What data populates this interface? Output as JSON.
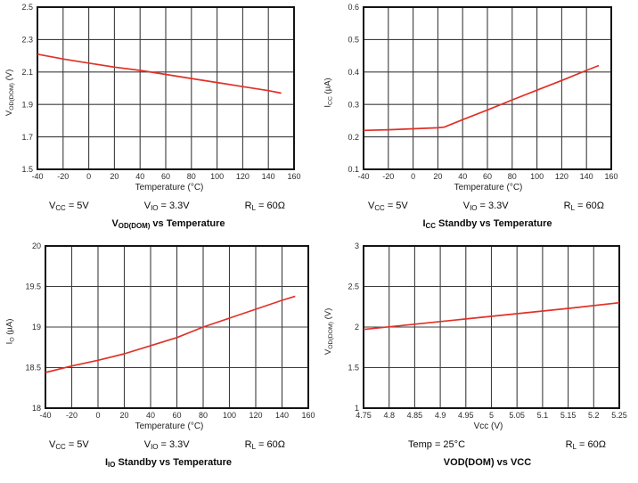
{
  "style": {
    "background": "#ffffff",
    "line_color": "#e03127",
    "grid_color": "#3d3d3d",
    "frame_color": "#141414",
    "tick_color": "#2b2b2b"
  },
  "chart_data": [
    {
      "id": "vod_dom_vs_temperature",
      "type": "line",
      "title": [
        {
          "t": "V"
        },
        {
          "t": "OD(DOM)",
          "sub": true
        },
        {
          "t": " vs Temperature"
        }
      ],
      "xlabel": "Temperature (°C)",
      "ylabel": [
        {
          "t": "V"
        },
        {
          "t": "OD(DOM)",
          "sub": true
        },
        {
          "t": " (V)"
        }
      ],
      "xlim": [
        -40,
        160
      ],
      "ylim": [
        1.5,
        2.5
      ],
      "xticks": [
        -40,
        -20,
        0,
        20,
        40,
        60,
        80,
        100,
        120,
        140,
        160
      ],
      "xtick_labels": [
        "-40",
        "-20",
        "0",
        "20",
        "40",
        "60",
        "80",
        "100",
        "120",
        "140",
        "160"
      ],
      "yticks": [
        1.5,
        1.7,
        1.9,
        2.1,
        2.3,
        2.5
      ],
      "ytick_labels": [
        "1.5",
        "1.7",
        "1.9",
        "2.1",
        "2.3",
        "2.5"
      ],
      "grid": true,
      "legend": "none",
      "series": [
        {
          "name": "VOD(DOM)",
          "points": [
            [
              -40,
              2.21
            ],
            [
              -20,
              2.18
            ],
            [
              0,
              2.155
            ],
            [
              20,
              2.13
            ],
            [
              40,
              2.11
            ],
            [
              60,
              2.085
            ],
            [
              80,
              2.06
            ],
            [
              100,
              2.035
            ],
            [
              120,
              2.01
            ],
            [
              140,
              1.985
            ],
            [
              150,
              1.97
            ]
          ]
        }
      ],
      "conditions": [
        [
          {
            "t": "V"
          },
          {
            "t": "CC",
            "sub": true
          },
          {
            "t": " = 5V"
          }
        ],
        [
          {
            "t": "V"
          },
          {
            "t": "IO",
            "sub": true
          },
          {
            "t": " = 3.3V"
          }
        ],
        [
          {
            "t": "R"
          },
          {
            "t": "L",
            "sub": true
          },
          {
            "t": " = 60Ω"
          }
        ]
      ]
    },
    {
      "id": "icc_standby_vs_temperature",
      "type": "line",
      "title": [
        {
          "t": "I"
        },
        {
          "t": "CC",
          "sub": true
        },
        {
          "t": " Standby vs Temperature"
        }
      ],
      "xlabel": "Temperature (°C)",
      "ylabel": [
        {
          "t": "I"
        },
        {
          "t": "CC",
          "sub": true
        },
        {
          "t": " (µA)"
        }
      ],
      "xlim": [
        -40,
        160
      ],
      "ylim": [
        0.1,
        0.6
      ],
      "xticks": [
        -40,
        -20,
        0,
        20,
        40,
        60,
        80,
        100,
        120,
        140,
        160
      ],
      "xtick_labels": [
        "-40",
        "-20",
        "0",
        "20",
        "40",
        "60",
        "80",
        "100",
        "120",
        "140",
        "160"
      ],
      "yticks": [
        0.1,
        0.2,
        0.3,
        0.4,
        0.5,
        0.6
      ],
      "ytick_labels": [
        "0.1",
        "0.2",
        "0.3",
        "0.4",
        "0.5",
        "0.6"
      ],
      "grid": true,
      "legend": "none",
      "series": [
        {
          "name": "ICC standby",
          "points": [
            [
              -40,
              0.22
            ],
            [
              -20,
              0.222
            ],
            [
              0,
              0.225
            ],
            [
              20,
              0.228
            ],
            [
              25,
              0.23
            ],
            [
              40,
              0.253
            ],
            [
              60,
              0.283
            ],
            [
              80,
              0.314
            ],
            [
              100,
              0.344
            ],
            [
              120,
              0.374
            ],
            [
              140,
              0.405
            ],
            [
              150,
              0.42
            ]
          ]
        }
      ],
      "conditions": [
        [
          {
            "t": "V"
          },
          {
            "t": "CC",
            "sub": true
          },
          {
            "t": " = 5V"
          }
        ],
        [
          {
            "t": "V"
          },
          {
            "t": "IO",
            "sub": true
          },
          {
            "t": " = 3.3V"
          }
        ],
        [
          {
            "t": "R"
          },
          {
            "t": "L",
            "sub": true
          },
          {
            "t": " = 60Ω"
          }
        ]
      ]
    },
    {
      "id": "io_standby_vs_temperature",
      "type": "line",
      "title": [
        {
          "t": "I"
        },
        {
          "t": "IO",
          "sub": true
        },
        {
          "t": " Standby vs Temperature"
        }
      ],
      "xlabel": "Temperature (°C)",
      "ylabel": [
        {
          "t": "I"
        },
        {
          "t": "O",
          "sub": true
        },
        {
          "t": " (µA)"
        }
      ],
      "xlim": [
        -40,
        160
      ],
      "ylim": [
        18,
        20
      ],
      "xticks": [
        -40,
        -20,
        0,
        20,
        40,
        60,
        80,
        100,
        120,
        140,
        160
      ],
      "xtick_labels": [
        "-40",
        "-20",
        "0",
        "20",
        "40",
        "60",
        "80",
        "100",
        "120",
        "140",
        "160"
      ],
      "yticks": [
        18,
        18.5,
        19,
        19.5,
        20
      ],
      "ytick_labels": [
        "18",
        "18.5",
        "19",
        "19.5",
        "20"
      ],
      "grid": true,
      "legend": "none",
      "series": [
        {
          "name": "IO standby",
          "points": [
            [
              -40,
              18.44
            ],
            [
              -20,
              18.52
            ],
            [
              0,
              18.59
            ],
            [
              20,
              18.67
            ],
            [
              40,
              18.77
            ],
            [
              60,
              18.87
            ],
            [
              80,
              19.0
            ],
            [
              100,
              19.11
            ],
            [
              120,
              19.22
            ],
            [
              140,
              19.33
            ],
            [
              150,
              19.38
            ]
          ]
        }
      ],
      "conditions": [
        [
          {
            "t": "V"
          },
          {
            "t": "CC",
            "sub": true
          },
          {
            "t": " = 5V"
          }
        ],
        [
          {
            "t": "V"
          },
          {
            "t": "IO",
            "sub": true
          },
          {
            "t": " = 3.3V"
          }
        ],
        [
          {
            "t": "R"
          },
          {
            "t": "L",
            "sub": true
          },
          {
            "t": " = 60Ω"
          }
        ]
      ]
    },
    {
      "id": "vod_dom_vs_vcc",
      "type": "line",
      "title": [
        {
          "t": "VOD(DOM) vs VCC"
        }
      ],
      "xlabel": "Vcc (V)",
      "ylabel": [
        {
          "t": "V"
        },
        {
          "t": "OD(DOM)",
          "sub": true
        },
        {
          "t": " (V)"
        }
      ],
      "xlim": [
        4.75,
        5.25
      ],
      "ylim": [
        1,
        3
      ],
      "xticks": [
        4.75,
        4.8,
        4.85,
        4.9,
        4.95,
        5,
        5.05,
        5.1,
        5.15,
        5.2,
        5.25
      ],
      "xtick_labels": [
        "4.75",
        "4.8",
        "4.85",
        "4.9",
        "4.95",
        "5",
        "5.05",
        "5.1",
        "5.15",
        "5.2",
        "5.25"
      ],
      "yticks": [
        1,
        1.5,
        2,
        2.5,
        3
      ],
      "ytick_labels": [
        "1",
        "1.5",
        "2",
        "2.5",
        "3"
      ],
      "grid": true,
      "legend": "none",
      "series": [
        {
          "name": "VOD(DOM)",
          "points": [
            [
              4.75,
              1.97
            ],
            [
              4.85,
              2.035
            ],
            [
              4.95,
              2.1
            ],
            [
              5.05,
              2.165
            ],
            [
              5.15,
              2.23
            ],
            [
              5.25,
              2.3
            ]
          ]
        }
      ],
      "conditions": [
        [
          {
            "t": "Temp = 25°C"
          }
        ],
        [
          {
            "t": "R"
          },
          {
            "t": "L",
            "sub": true
          },
          {
            "t": " = 60Ω"
          }
        ]
      ]
    }
  ]
}
